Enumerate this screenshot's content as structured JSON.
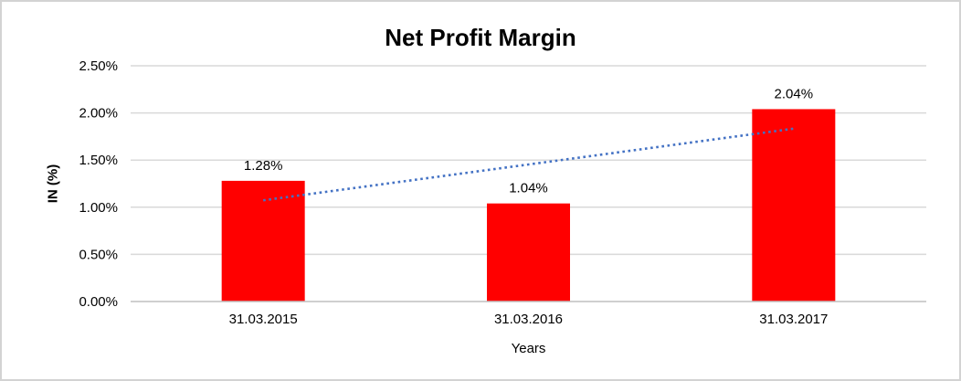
{
  "chart_data": {
    "type": "bar",
    "title": "Net Profit Margin",
    "xlabel": "Years",
    "ylabel": "IN (%)",
    "categories": [
      "31.03.2015",
      "31.03.2016",
      "31.03.2017"
    ],
    "values": [
      1.28,
      1.04,
      2.04
    ],
    "data_labels": [
      "1.28%",
      "1.04%",
      "2.04%"
    ],
    "ylim": [
      0,
      2.5
    ],
    "ytick_labels": [
      "0.00%",
      "0.50%",
      "1.00%",
      "1.50%",
      "2.00%",
      "2.50%"
    ],
    "grid": true,
    "legend": "none",
    "bar_color": "#ff0000",
    "gridline_color": "#d9d9d9",
    "axis_line_color": "#bfbfbf",
    "text_color": "#000000",
    "trendline": {
      "type": "linear",
      "style": "dotted",
      "color": "#4472c4"
    }
  }
}
